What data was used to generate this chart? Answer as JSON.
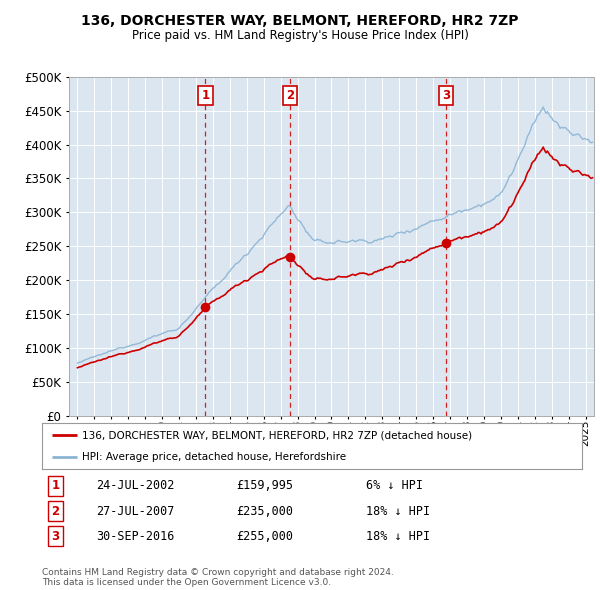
{
  "title": "136, DORCHESTER WAY, BELMONT, HEREFORD, HR2 7ZP",
  "subtitle": "Price paid vs. HM Land Registry's House Price Index (HPI)",
  "plot_bg_color": "#dce6f1",
  "line_color_property": "#cc0000",
  "line_color_hpi": "#8ab4d4",
  "transactions": [
    {
      "num": 1,
      "date_str": "24-JUL-2002",
      "date_x": 2002.56,
      "price": 159995,
      "label": "6% ↓ HPI"
    },
    {
      "num": 2,
      "date_str": "27-JUL-2007",
      "date_x": 2007.57,
      "price": 235000,
      "label": "18% ↓ HPI"
    },
    {
      "num": 3,
      "date_str": "30-SEP-2016",
      "date_x": 2016.75,
      "price": 255000,
      "label": "18% ↓ HPI"
    }
  ],
  "legend_property": "136, DORCHESTER WAY, BELMONT, HEREFORD, HR2 7ZP (detached house)",
  "legend_hpi": "HPI: Average price, detached house, Herefordshire",
  "footer1": "Contains HM Land Registry data © Crown copyright and database right 2024.",
  "footer2": "This data is licensed under the Open Government Licence v3.0.",
  "ylim": [
    0,
    500000
  ],
  "yticks": [
    0,
    50000,
    100000,
    150000,
    200000,
    250000,
    300000,
    350000,
    400000,
    450000,
    500000
  ],
  "xlim": [
    1994.5,
    2025.5
  ],
  "xticks": [
    1995,
    1996,
    1997,
    1998,
    1999,
    2000,
    2001,
    2002,
    2003,
    2004,
    2005,
    2006,
    2007,
    2008,
    2009,
    2010,
    2011,
    2012,
    2013,
    2014,
    2015,
    2016,
    2017,
    2018,
    2019,
    2020,
    2021,
    2022,
    2023,
    2024,
    2025
  ]
}
